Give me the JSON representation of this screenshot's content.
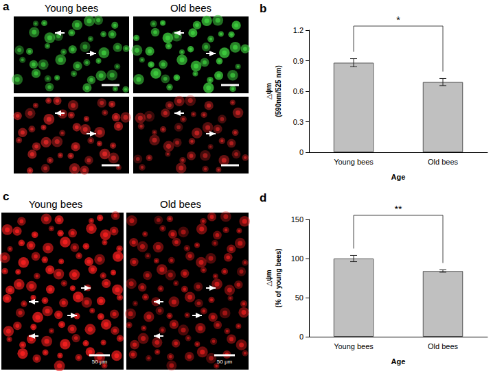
{
  "chart_data": [
    {
      "panel": "b",
      "type": "bar",
      "categories": [
        "Young bees",
        "Old bees"
      ],
      "values": [
        0.88,
        0.69
      ],
      "errors": [
        0.04,
        0.035
      ],
      "xlabel": "Age",
      "ylabel": "△ψm\n(590nm/525 nm)",
      "ylim": [
        0,
        1.2
      ],
      "yticks": [
        0,
        0.3,
        0.6,
        0.9,
        1.2
      ],
      "color": "#c0c0c0",
      "significance": "*",
      "grid": false
    },
    {
      "panel": "d",
      "type": "bar",
      "categories": [
        "Young bees",
        "Old bees"
      ],
      "values": [
        100,
        84
      ],
      "errors": [
        4,
        1.5
      ],
      "xlabel": "Age",
      "ylabel": "△ψm\n(% of young bees)",
      "ylim": [
        0,
        150
      ],
      "yticks": [
        0,
        50,
        100,
        150
      ],
      "color": "#c0c0c0",
      "significance": "**",
      "grid": false
    }
  ],
  "images": [
    {
      "panel": "a",
      "titles": [
        "Young bees",
        "Old bees"
      ]
    },
    {
      "panel": "c",
      "titles": [
        "Young bees",
        "Old bees"
      ],
      "scale_bar": "50 μm"
    }
  ]
}
